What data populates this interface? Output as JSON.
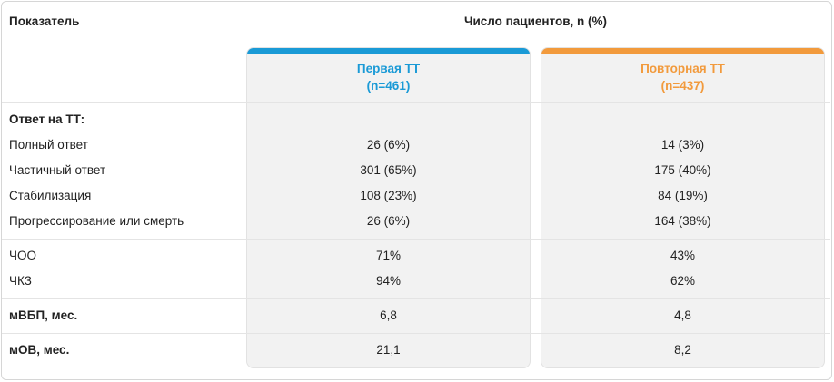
{
  "header": {
    "indicator_label": "Показатель",
    "patients_label": "Число пациентов, n (%)"
  },
  "columns": [
    {
      "name": "Первая ТТ",
      "n": "(n=461)",
      "color": "#1a9ad6"
    },
    {
      "name": "Повторная ТТ",
      "n": "(n=437)",
      "color": "#f29a3c"
    }
  ],
  "sections": {
    "response_title": "Ответ на ТТ:",
    "response_rows": [
      {
        "label": "Полный ответ",
        "v1": "26 (6%)",
        "v2": "14 (3%)"
      },
      {
        "label": "Частичный ответ",
        "v1": "301 (65%)",
        "v2": "175 (40%)"
      },
      {
        "label": "Стабилизация",
        "v1": "108 (23%)",
        "v2": "84 (19%)"
      },
      {
        "label": "Прогрессирование или смерть",
        "v1": "26 (6%)",
        "v2": "164 (38%)"
      }
    ],
    "rate_rows": [
      {
        "label": "ЧОО",
        "v1": "71%",
        "v2": "43%"
      },
      {
        "label": "ЧКЗ",
        "v1": "94%",
        "v2": "62%"
      }
    ],
    "pfs_row": {
      "label": "мВБП, мес.",
      "v1": "6,8",
      "v2": "4,8"
    },
    "os_row": {
      "label": "мОВ, мес.",
      "v1": "21,1",
      "v2": "8,2"
    }
  }
}
